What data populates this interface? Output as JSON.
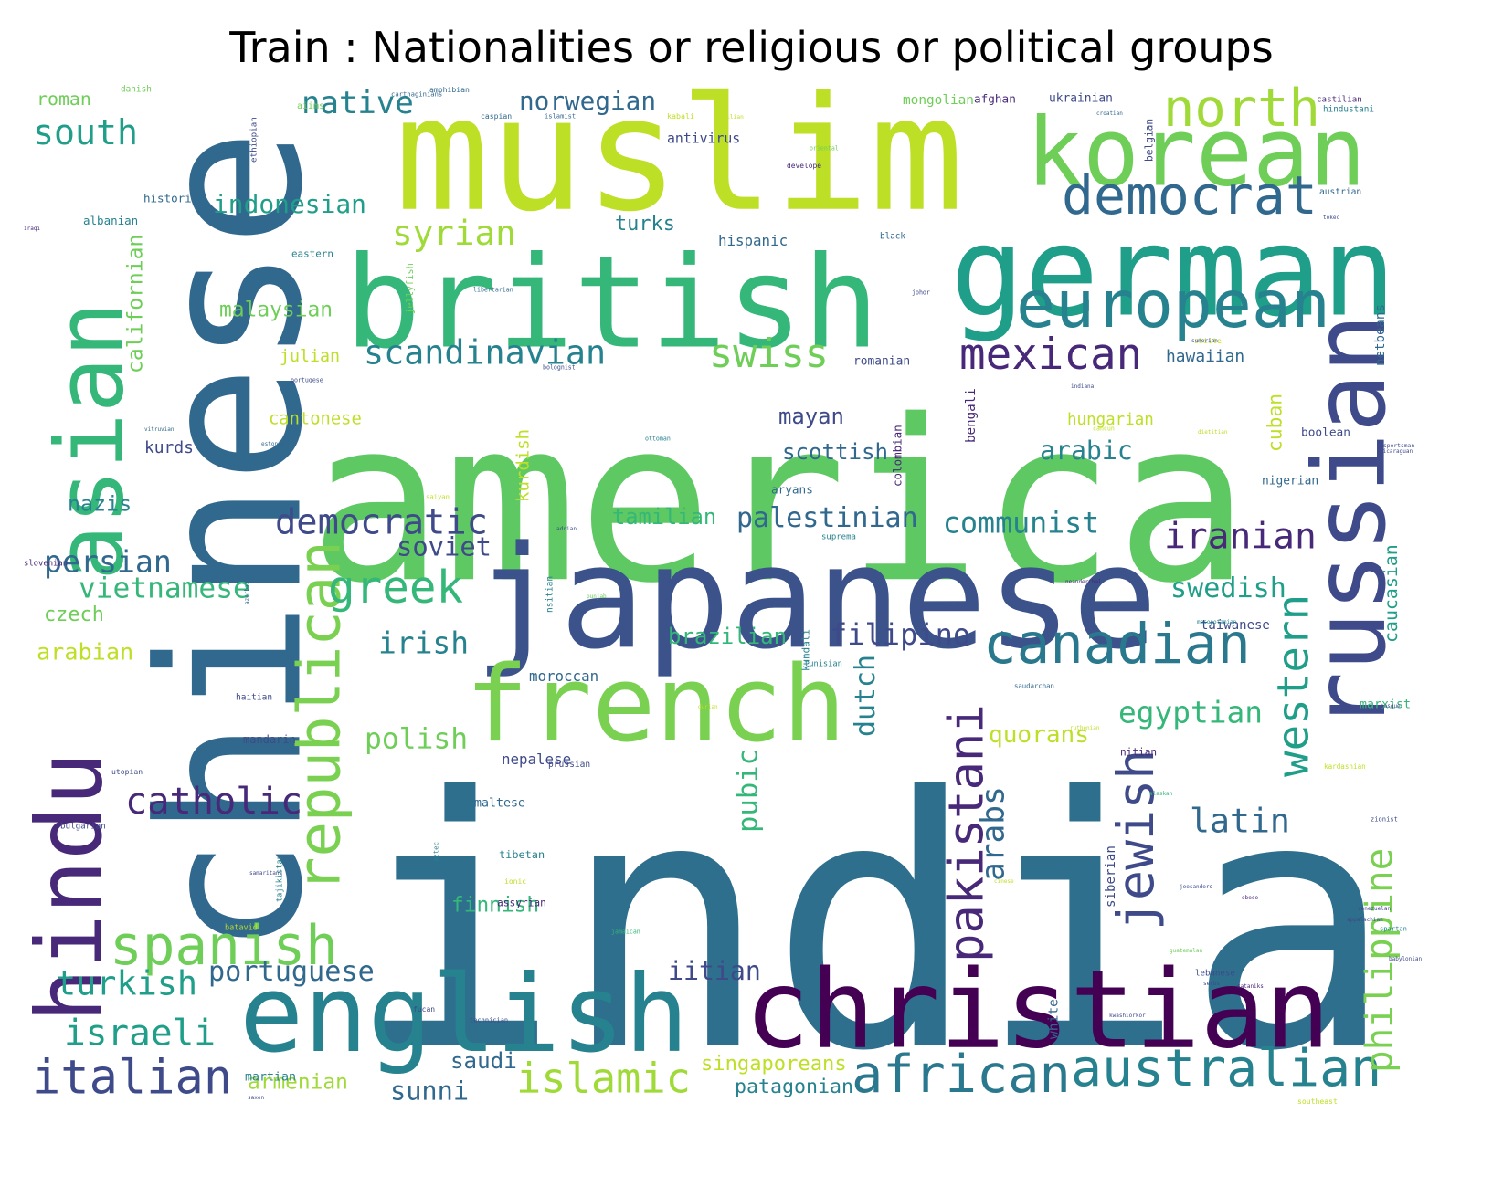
{
  "title": "Train : Nationalities or religious or political groups",
  "palette": [
    "#440154",
    "#482878",
    "#3e4a89",
    "#31688e",
    "#26828e",
    "#1f9e89",
    "#35b779",
    "#6ece58",
    "#b5de2b",
    "#fde725"
  ],
  "words": [
    {
      "text": "india",
      "color": "#2e6f8e"
    },
    {
      "text": "america",
      "color": "#5ec962"
    },
    {
      "text": "chinese",
      "color": "#31688e"
    },
    {
      "text": "muslim",
      "color": "#bddf26"
    },
    {
      "text": "japanese",
      "color": "#3b528b"
    },
    {
      "text": "british",
      "color": "#35b779"
    },
    {
      "text": "german",
      "color": "#1f9e89"
    },
    {
      "text": "korean",
      "color": "#6ece58"
    },
    {
      "text": "asian",
      "color": "#35b779"
    },
    {
      "text": "christian",
      "color": "#440154"
    },
    {
      "text": "english",
      "color": "#26828e"
    },
    {
      "text": "french",
      "color": "#7ad151"
    },
    {
      "text": "russian",
      "color": "#3e4a89"
    },
    {
      "text": "hindu",
      "color": "#482878"
    },
    {
      "text": "republican",
      "color": "#7ad151"
    },
    {
      "text": "european",
      "color": "#26828e"
    },
    {
      "text": "spanish",
      "color": "#6ece58"
    },
    {
      "text": "australian",
      "color": "#26828e"
    },
    {
      "text": "african",
      "color": "#2a788e"
    },
    {
      "text": "canadian",
      "color": "#2a788e"
    },
    {
      "text": "pakistani",
      "color": "#482878"
    },
    {
      "text": "democrat",
      "color": "#31688e"
    },
    {
      "text": "italian",
      "color": "#3e4a89"
    },
    {
      "text": "islamic",
      "color": "#a0da39"
    },
    {
      "text": "greek",
      "color": "#35b779"
    },
    {
      "text": "north",
      "color": "#a0da39"
    },
    {
      "text": "mexican",
      "color": "#482878"
    },
    {
      "text": "jewish",
      "color": "#3e4a89"
    },
    {
      "text": "western",
      "color": "#1f9e89"
    },
    {
      "text": "philippine",
      "color": "#7ad151"
    },
    {
      "text": "turkish",
      "color": "#1f9e89"
    },
    {
      "text": "israeli",
      "color": "#1f9e89"
    },
    {
      "text": "catholic",
      "color": "#482878"
    },
    {
      "text": "democratic",
      "color": "#3e4a89"
    },
    {
      "text": "iranian",
      "color": "#482878"
    },
    {
      "text": "south",
      "color": "#1f9e89"
    },
    {
      "text": "scandinavian",
      "color": "#26828e"
    },
    {
      "text": "egyptian",
      "color": "#35b779"
    },
    {
      "text": "swiss",
      "color": "#6ece58"
    },
    {
      "text": "syrian",
      "color": "#a0da39"
    },
    {
      "text": "native",
      "color": "#26828e"
    },
    {
      "text": "persian",
      "color": "#31688e"
    },
    {
      "text": "latin",
      "color": "#31688e"
    },
    {
      "text": "filipino",
      "color": "#3e4a89"
    },
    {
      "text": "communist",
      "color": "#26828e"
    },
    {
      "text": "palestinian",
      "color": "#31688e"
    },
    {
      "text": "vietnamese",
      "color": "#35b779"
    },
    {
      "text": "norwegian",
      "color": "#31688e"
    },
    {
      "text": "indonesian",
      "color": "#1f9e89"
    },
    {
      "text": "polish",
      "color": "#6ece58"
    },
    {
      "text": "irish",
      "color": "#26828e"
    },
    {
      "text": "portuguese",
      "color": "#31688e"
    },
    {
      "text": "arabs",
      "color": "#31688e"
    },
    {
      "text": "swedish",
      "color": "#1f9e89"
    },
    {
      "text": "iitian",
      "color": "#3e4a89"
    },
    {
      "text": "arabic",
      "color": "#26828e"
    },
    {
      "text": "scottish",
      "color": "#31688e"
    },
    {
      "text": "soviet",
      "color": "#3e4a89"
    },
    {
      "text": "brazilian",
      "color": "#35b779"
    },
    {
      "text": "tamilian",
      "color": "#35b779"
    },
    {
      "text": "dutch",
      "color": "#26828e"
    },
    {
      "text": "sunni",
      "color": "#31688e"
    },
    {
      "text": "finnish",
      "color": "#35b779"
    },
    {
      "text": "saudi",
      "color": "#31688e"
    },
    {
      "text": "pubic",
      "color": "#35b779"
    },
    {
      "text": "arabian",
      "color": "#bddf26"
    },
    {
      "text": "quorans",
      "color": "#bddf26"
    },
    {
      "text": "singaporeans",
      "color": "#bddf26"
    },
    {
      "text": "patagonian",
      "color": "#26828e"
    },
    {
      "text": "armenian",
      "color": "#a0da39"
    },
    {
      "text": "malaysian",
      "color": "#6ece58"
    },
    {
      "text": "californian",
      "color": "#6ece58"
    },
    {
      "text": "caucasian",
      "color": "#1f9e89"
    },
    {
      "text": "nazis",
      "color": "#26828e"
    },
    {
      "text": "czech",
      "color": "#6ece58"
    },
    {
      "text": "roman",
      "color": "#6ece58"
    },
    {
      "text": "turks",
      "color": "#26828e"
    },
    {
      "text": "mayan",
      "color": "#3e4a89"
    },
    {
      "text": "cantonese",
      "color": "#bddf26"
    },
    {
      "text": "hungarian",
      "color": "#bddf26"
    },
    {
      "text": "cuban",
      "color": "#bddf26"
    },
    {
      "text": "hispanic",
      "color": "#31688e"
    },
    {
      "text": "antivirus",
      "color": "#3e4a89"
    },
    {
      "text": "hawaiian",
      "color": "#31688e"
    },
    {
      "text": "julian",
      "color": "#bddf26"
    },
    {
      "text": "mongolian",
      "color": "#6ece58"
    },
    {
      "text": "afghan",
      "color": "#482878"
    },
    {
      "text": "ukrainian",
      "color": "#3e4a89"
    },
    {
      "text": "kurds",
      "color": "#3e4a89"
    },
    {
      "text": "bengali",
      "color": "#482878"
    },
    {
      "text": "colombian",
      "color": "#482878"
    },
    {
      "text": "kurdish",
      "color": "#bddf26"
    },
    {
      "text": "martian",
      "color": "#26828e"
    },
    {
      "text": "nepalese",
      "color": "#3e4a89"
    },
    {
      "text": "moroccan",
      "color": "#31688e"
    },
    {
      "text": "tibetan",
      "color": "#26828e"
    },
    {
      "text": "maltese",
      "color": "#31688e"
    },
    {
      "text": "historian",
      "color": "#31688e"
    },
    {
      "text": "albanian",
      "color": "#26828e"
    },
    {
      "text": "nigerian",
      "color": "#31688e"
    },
    {
      "text": "boolean",
      "color": "#3e4a89"
    },
    {
      "text": "taiwanese",
      "color": "#3e4a89"
    },
    {
      "text": "marxist",
      "color": "#35b779"
    },
    {
      "text": "white",
      "color": "#31688e"
    },
    {
      "text": "castilian",
      "color": "#482878"
    },
    {
      "text": "netbeans",
      "color": "#31688e"
    },
    {
      "text": "aryans",
      "color": "#31688e"
    },
    {
      "text": "mandarin",
      "color": "#3e4a89"
    },
    {
      "text": "siberian",
      "color": "#3e4a89"
    },
    {
      "text": "assyrian",
      "color": "#482878"
    },
    {
      "text": "romanian",
      "color": "#3e4a89"
    },
    {
      "text": "prussian",
      "color": "#3e4a89"
    },
    {
      "text": "eastern",
      "color": "#26828e"
    },
    {
      "text": "black",
      "color": "#31688e"
    },
    {
      "text": "austrian",
      "color": "#31688e"
    },
    {
      "text": "hindustani",
      "color": "#26828e"
    },
    {
      "text": "tunisian",
      "color": "#26828e"
    },
    {
      "text": "kundali",
      "color": "#26828e"
    },
    {
      "text": "nsitian",
      "color": "#26828e"
    },
    {
      "text": "bulgarian",
      "color": "#3e4a89"
    },
    {
      "text": "haitian",
      "color": "#3e4a89"
    },
    {
      "text": "utopian",
      "color": "#3e4a89"
    },
    {
      "text": "technician",
      "color": "#3e4a89"
    },
    {
      "text": "lebanese",
      "color": "#3e4a89"
    },
    {
      "text": "serbs",
      "color": "#3e4a89"
    },
    {
      "text": "kardashian",
      "color": "#bddf26"
    },
    {
      "text": "southeast",
      "color": "#bddf26"
    },
    {
      "text": "nitian",
      "color": "#482878"
    },
    {
      "text": "tajikistan",
      "color": "#26828e"
    },
    {
      "text": "aztec",
      "color": "#26828e"
    },
    {
      "text": "estonian",
      "color": "#31688e"
    },
    {
      "text": "ottoman",
      "color": "#26828e"
    },
    {
      "text": "saiyan",
      "color": "#bddf26"
    },
    {
      "text": "ionic",
      "color": "#bddf26"
    },
    {
      "text": "jamaican",
      "color": "#35b779"
    },
    {
      "text": "danish",
      "color": "#6ece58"
    },
    {
      "text": "amphibian",
      "color": "#31688e"
    },
    {
      "text": "carthaginians",
      "color": "#31688e"
    },
    {
      "text": "caspian",
      "color": "#31688e"
    },
    {
      "text": "islamist",
      "color": "#31688e"
    },
    {
      "text": "kabali",
      "color": "#bddf26"
    },
    {
      "text": "sicilian",
      "color": "#bddf26"
    },
    {
      "text": "croatian",
      "color": "#31688e"
    },
    {
      "text": "ethiopian",
      "color": "#3e4a89"
    },
    {
      "text": "aiims",
      "color": "#6ece58"
    },
    {
      "text": "iraqi",
      "color": "#482878"
    },
    {
      "text": "oriental",
      "color": "#6ece58"
    },
    {
      "text": "develope",
      "color": "#482878"
    },
    {
      "text": "belgian",
      "color": "#3e4a89"
    },
    {
      "text": "tokec",
      "color": "#3e4a89"
    },
    {
      "text": "jellyfish",
      "color": "#6ece58"
    },
    {
      "text": "libertarian",
      "color": "#31688e"
    },
    {
      "text": "johor",
      "color": "#3e4a89"
    },
    {
      "text": "shiite",
      "color": "#bddf26"
    },
    {
      "text": "sumerian",
      "color": "#3e4a89"
    },
    {
      "text": "portugese",
      "color": "#3e4a89"
    },
    {
      "text": "bolognist",
      "color": "#3e4a89"
    },
    {
      "text": "indiana",
      "color": "#3e4a89"
    },
    {
      "text": "cancun",
      "color": "#bddf26"
    },
    {
      "text": "dietitian",
      "color": "#bddf26"
    },
    {
      "text": "nicaraguan",
      "color": "#3e4a89"
    },
    {
      "text": "vitruvian",
      "color": "#31688e"
    },
    {
      "text": "slovenian",
      "color": "#482878"
    },
    {
      "text": "adrian",
      "color": "#3e4a89"
    },
    {
      "text": "suprema",
      "color": "#26828e"
    },
    {
      "text": "neanderthal",
      "color": "#482878"
    },
    {
      "text": "punjab",
      "color": "#6ece58"
    },
    {
      "text": "mesopotamian",
      "color": "#26828e"
    },
    {
      "text": "azerbaijani",
      "color": "#31688e"
    },
    {
      "text": "saudarchan",
      "color": "#31688e"
    },
    {
      "text": "durian",
      "color": "#bddf26"
    },
    {
      "text": "basque",
      "color": "#3e4a89"
    },
    {
      "text": "ruthenian",
      "color": "#bddf26"
    },
    {
      "text": "alaskan",
      "color": "#35b779"
    },
    {
      "text": "venezuelan",
      "color": "#3e4a89"
    },
    {
      "text": "zionist",
      "color": "#3e4a89"
    },
    {
      "text": "sportsman",
      "color": "#3e4a89"
    },
    {
      "text": "cinese",
      "color": "#bddf26"
    },
    {
      "text": "jeesanders",
      "color": "#3e4a89"
    },
    {
      "text": "obese",
      "color": "#482878"
    },
    {
      "text": "samaritans",
      "color": "#3e4a89"
    },
    {
      "text": "fucan",
      "color": "#3e4a89"
    },
    {
      "text": "appalachian",
      "color": "#3e4a89"
    },
    {
      "text": "spartan",
      "color": "#26828e"
    },
    {
      "text": "batavid",
      "color": "#bddf26"
    },
    {
      "text": "saxon",
      "color": "#3e4a89"
    },
    {
      "text": "kwashiorkor",
      "color": "#3e4a89"
    },
    {
      "text": "sataniks",
      "color": "#482878"
    },
    {
      "text": "guatemalan",
      "color": "#6ece58"
    },
    {
      "text": "babylonian",
      "color": "#3e4a89"
    }
  ]
}
